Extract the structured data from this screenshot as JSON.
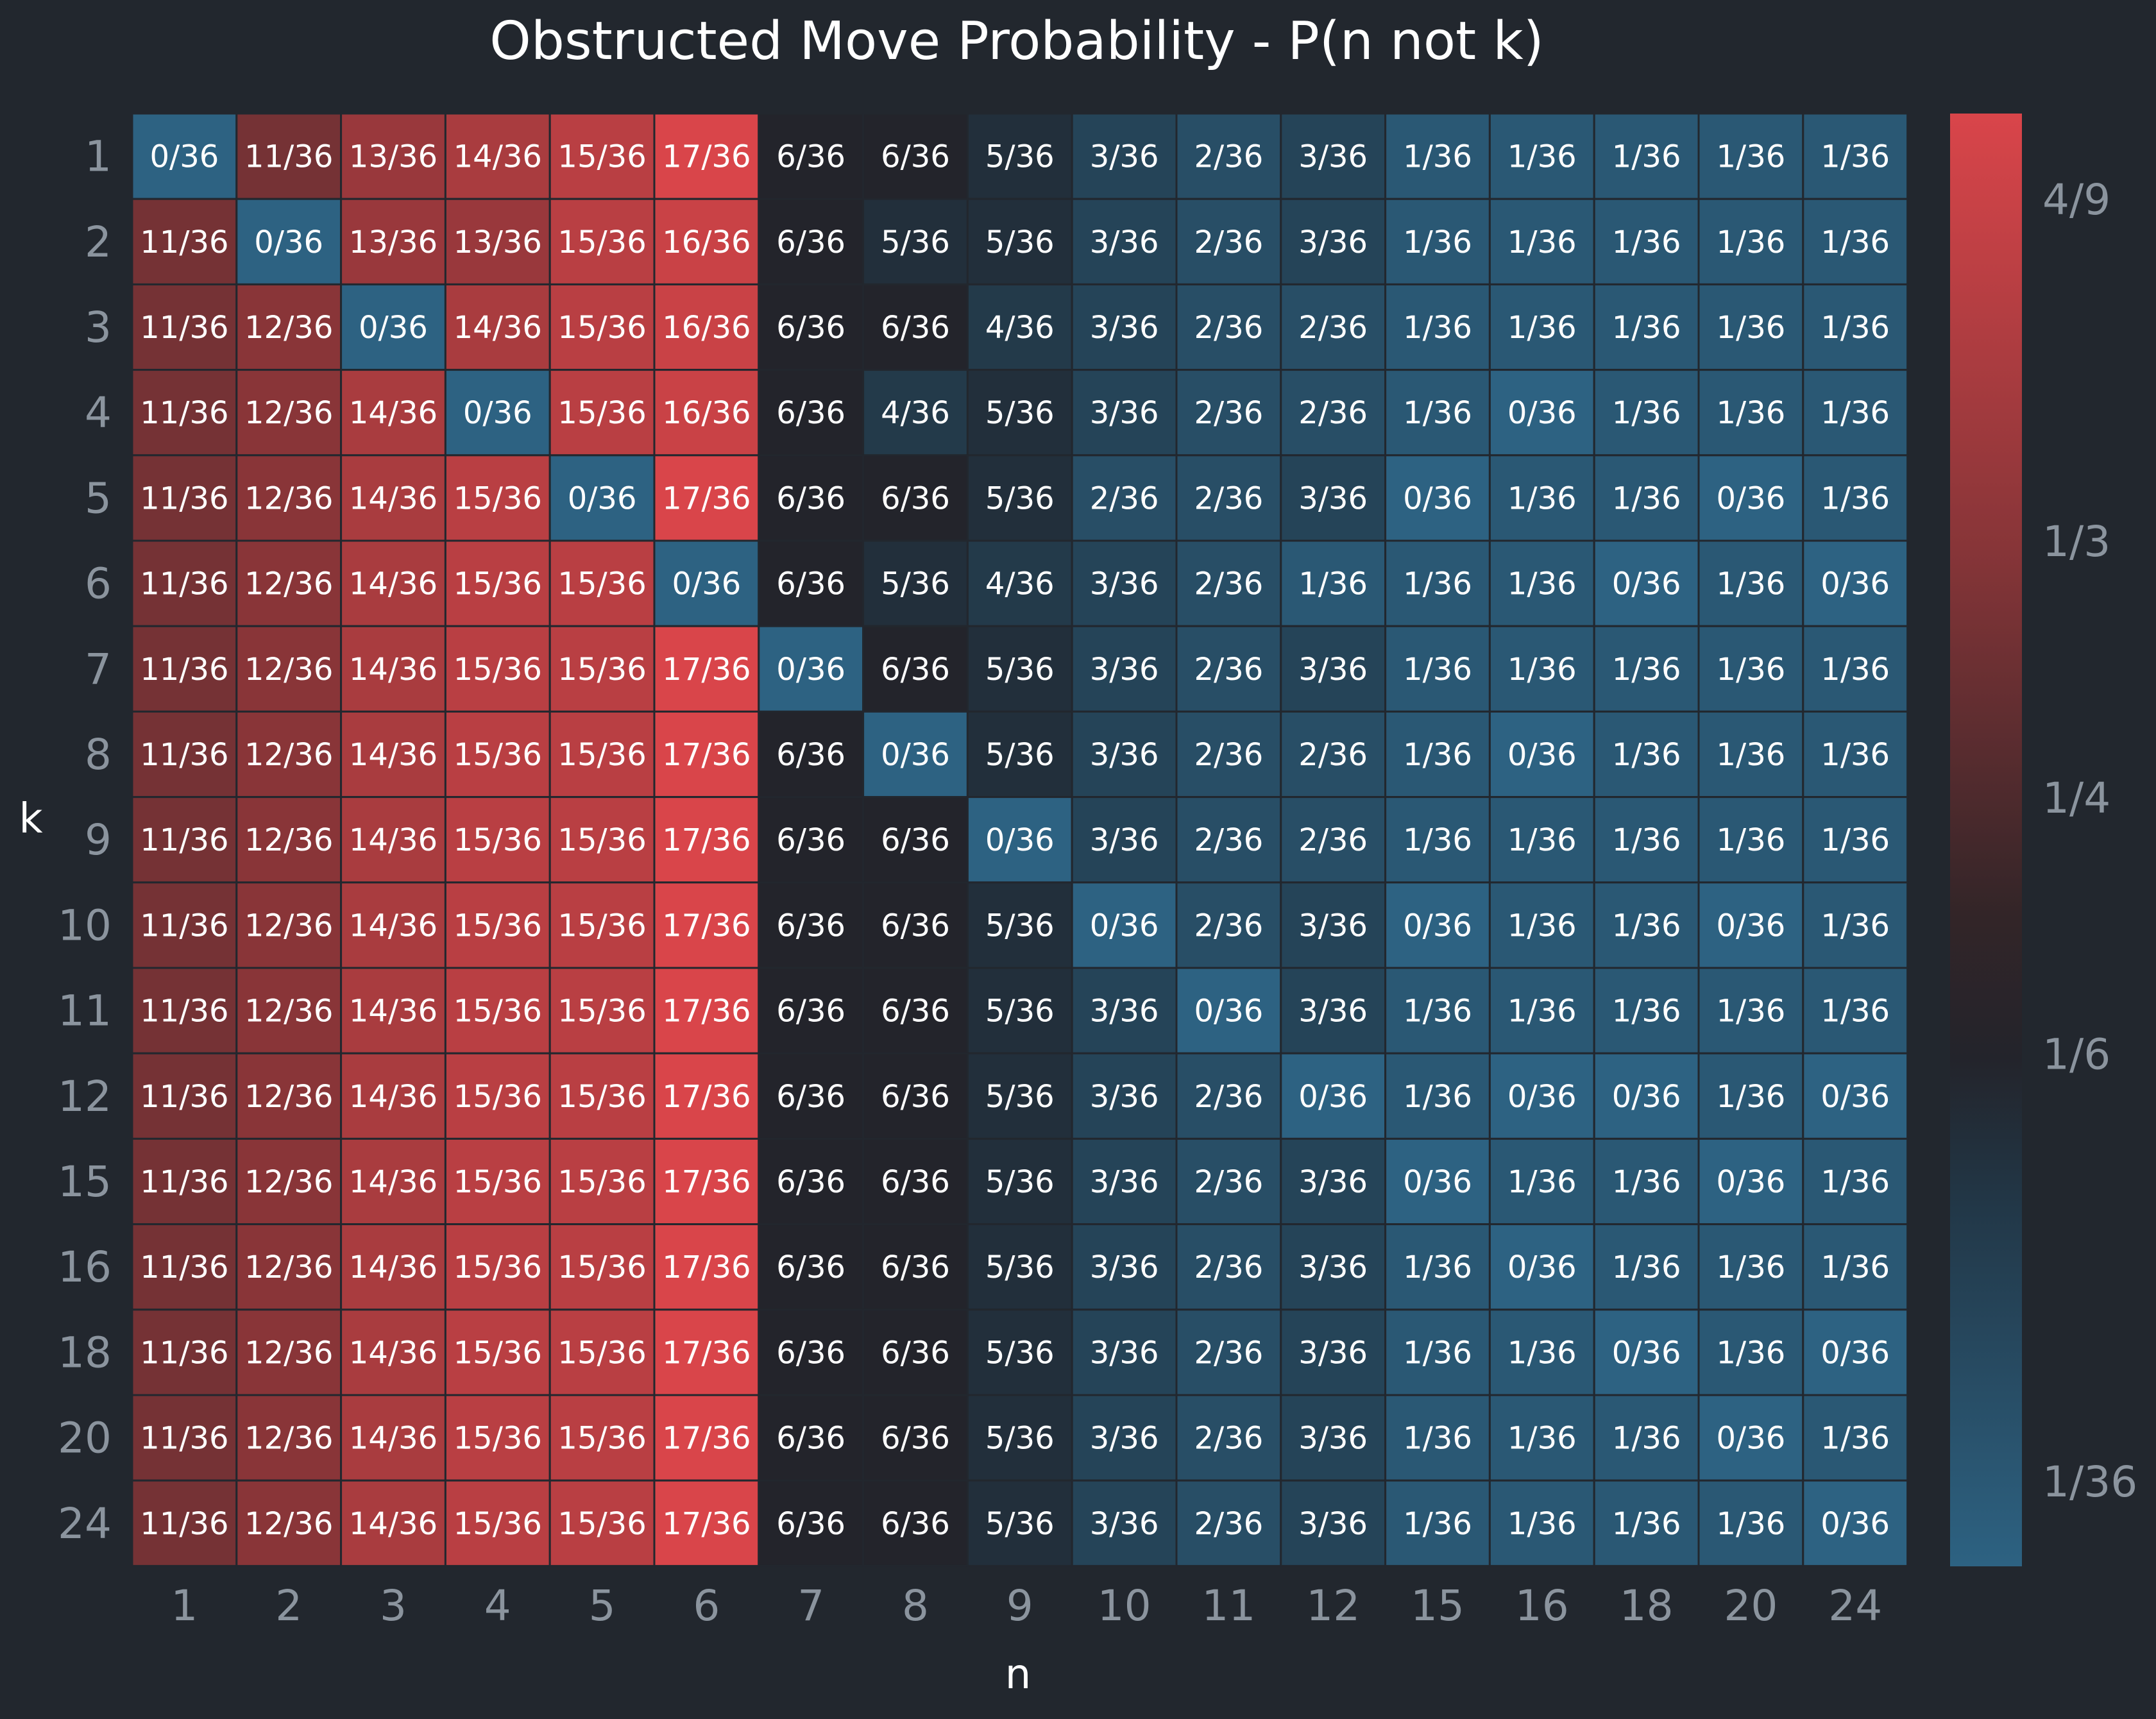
{
  "chart_data": {
    "type": "heatmap",
    "title": "Obstructed Move Probability - P(n not k)",
    "xlabel": "n",
    "ylabel": "k",
    "x_categories": [
      "1",
      "2",
      "3",
      "4",
      "5",
      "6",
      "7",
      "8",
      "9",
      "10",
      "11",
      "12",
      "15",
      "16",
      "18",
      "20",
      "24"
    ],
    "y_categories": [
      "1",
      "2",
      "3",
      "4",
      "5",
      "6",
      "7",
      "8",
      "9",
      "10",
      "11",
      "12",
      "15",
      "16",
      "18",
      "20",
      "24"
    ],
    "denominator": 36,
    "numerators": [
      [
        0,
        11,
        13,
        14,
        15,
        17,
        6,
        6,
        5,
        3,
        2,
        3,
        1,
        1,
        1,
        1,
        1
      ],
      [
        11,
        0,
        13,
        13,
        15,
        16,
        6,
        5,
        5,
        3,
        2,
        3,
        1,
        1,
        1,
        1,
        1
      ],
      [
        11,
        12,
        0,
        14,
        15,
        16,
        6,
        6,
        4,
        3,
        2,
        2,
        1,
        1,
        1,
        1,
        1
      ],
      [
        11,
        12,
        14,
        0,
        15,
        16,
        6,
        4,
        5,
        3,
        2,
        2,
        1,
        0,
        1,
        1,
        1
      ],
      [
        11,
        12,
        14,
        15,
        0,
        17,
        6,
        6,
        5,
        2,
        2,
        3,
        0,
        1,
        1,
        0,
        1
      ],
      [
        11,
        12,
        14,
        15,
        15,
        0,
        6,
        5,
        4,
        3,
        2,
        1,
        1,
        1,
        0,
        1,
        0
      ],
      [
        11,
        12,
        14,
        15,
        15,
        17,
        0,
        6,
        5,
        3,
        2,
        3,
        1,
        1,
        1,
        1,
        1
      ],
      [
        11,
        12,
        14,
        15,
        15,
        17,
        6,
        0,
        5,
        3,
        2,
        2,
        1,
        0,
        1,
        1,
        1
      ],
      [
        11,
        12,
        14,
        15,
        15,
        17,
        6,
        6,
        0,
        3,
        2,
        2,
        1,
        1,
        1,
        1,
        1
      ],
      [
        11,
        12,
        14,
        15,
        15,
        17,
        6,
        6,
        5,
        0,
        2,
        3,
        0,
        1,
        1,
        0,
        1
      ],
      [
        11,
        12,
        14,
        15,
        15,
        17,
        6,
        6,
        5,
        3,
        0,
        3,
        1,
        1,
        1,
        1,
        1
      ],
      [
        11,
        12,
        14,
        15,
        15,
        17,
        6,
        6,
        5,
        3,
        2,
        0,
        1,
        0,
        0,
        1,
        0
      ],
      [
        11,
        12,
        14,
        15,
        15,
        17,
        6,
        6,
        5,
        3,
        2,
        3,
        0,
        1,
        1,
        0,
        1
      ],
      [
        11,
        12,
        14,
        15,
        15,
        17,
        6,
        6,
        5,
        3,
        2,
        3,
        1,
        0,
        1,
        1,
        1
      ],
      [
        11,
        12,
        14,
        15,
        15,
        17,
        6,
        6,
        5,
        3,
        2,
        3,
        1,
        1,
        0,
        1,
        0
      ],
      [
        11,
        12,
        14,
        15,
        15,
        17,
        6,
        6,
        5,
        3,
        2,
        3,
        1,
        1,
        1,
        0,
        1
      ],
      [
        11,
        12,
        14,
        15,
        15,
        17,
        6,
        6,
        5,
        3,
        2,
        3,
        1,
        1,
        1,
        1,
        0
      ]
    ],
    "value_range": [
      0,
      17
    ],
    "colorbar": {
      "ticks": [
        {
          "label": "4/9",
          "value": 16
        },
        {
          "label": "1/3",
          "value": 12
        },
        {
          "label": "1/4",
          "value": 9
        },
        {
          "label": "1/6",
          "value": 6
        },
        {
          "label": "1/36",
          "value": 1
        }
      ]
    },
    "colors": {
      "low": "#2d6282",
      "mid": "#2a2a33",
      "high": "#d9454a",
      "background": "#22272e",
      "grid": "#22272e"
    }
  }
}
